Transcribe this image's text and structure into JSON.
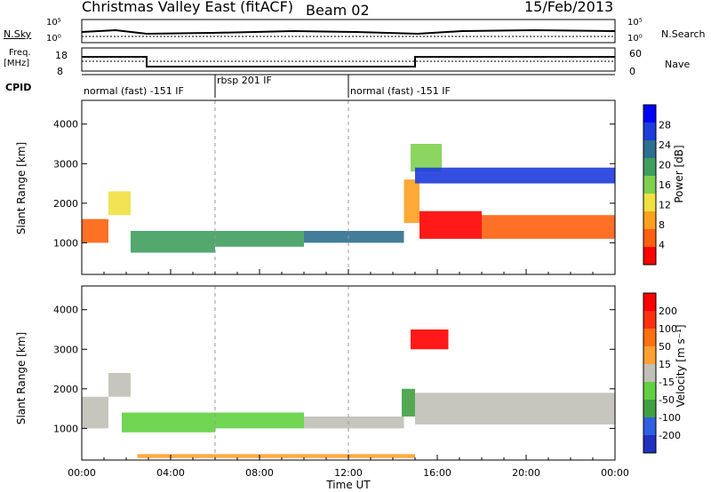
{
  "header": {
    "station": "Christmas Valley East (fitACF)",
    "beam": "Beam 02",
    "date": "15/Feb/2013"
  },
  "noise_panel": {
    "left_label": "N.Sky",
    "right_label": "N.Search",
    "left_ticks": [
      "10^5",
      "10^0"
    ],
    "right_ticks": [
      "10^5",
      "10^0"
    ]
  },
  "freq_panel": {
    "left_label_line1": "Freq.",
    "left_label_line2": "[MHz]",
    "left_ticks": [
      "18",
      "8"
    ],
    "right_label": "Nave",
    "right_ticks": [
      "60",
      "0"
    ]
  },
  "cpid": {
    "label": "CPID",
    "segments": [
      {
        "label": "normal (fast) -151 IF",
        "start_hour": 0,
        "end_hour": 6
      },
      {
        "label": "rbsp 201 IF",
        "start_hour": 6,
        "end_hour": 12
      },
      {
        "label": "normal (fast) -151 IF",
        "start_hour": 12,
        "end_hour": 24
      }
    ]
  },
  "colors": {
    "power_scale": [
      "#0000ff",
      "#1e3cdc",
      "#2f6f8f",
      "#3f9f5f",
      "#7fd04f",
      "#f0e040",
      "#ffa020",
      "#ff6010",
      "#ff0000"
    ],
    "velocity_scale": [
      "#2030c0",
      "#3060e0",
      "#40a040",
      "#60d040",
      "#c0c0b8",
      "#ffa030",
      "#ff7010",
      "#ff3010",
      "#ff0000"
    ]
  },
  "chart_data": [
    {
      "type": "heatmap",
      "panel": "power",
      "ylabel": "Slant Range [km]",
      "yticks": [
        1000,
        2000,
        3000,
        4000
      ],
      "ylim": [
        200,
        4600
      ],
      "xlim_hours": [
        0,
        24
      ],
      "colorbar": {
        "label": "Power [dB]",
        "ticks": [
          "28",
          "24",
          "20",
          "16",
          "12",
          "8",
          "4"
        ]
      },
      "bands": [
        {
          "start_hour": 0,
          "end_hour": 1.2,
          "range_low": 1000,
          "range_high": 1600,
          "level": 7
        },
        {
          "start_hour": 1.2,
          "end_hour": 2.2,
          "range_low": 1700,
          "range_high": 2300,
          "level": 5
        },
        {
          "start_hour": 2.2,
          "end_hour": 6,
          "range_low": 750,
          "range_high": 1300,
          "level": 3
        },
        {
          "start_hour": 6,
          "end_hour": 10,
          "range_low": 900,
          "range_high": 1300,
          "level": 3
        },
        {
          "start_hour": 10,
          "end_hour": 14.5,
          "range_low": 1000,
          "range_high": 1300,
          "level": 2
        },
        {
          "start_hour": 14.5,
          "end_hour": 15.2,
          "range_low": 1500,
          "range_high": 2600,
          "level": 6
        },
        {
          "start_hour": 15.2,
          "end_hour": 18,
          "range_low": 1100,
          "range_high": 1800,
          "level": 8
        },
        {
          "start_hour": 18,
          "end_hour": 24,
          "range_low": 1100,
          "range_high": 1700,
          "level": 7
        },
        {
          "start_hour": 14.8,
          "end_hour": 16.2,
          "range_low": 2800,
          "range_high": 3500,
          "level": 4
        },
        {
          "start_hour": 15,
          "end_hour": 24,
          "range_low": 2500,
          "range_high": 2900,
          "level": 1
        }
      ]
    },
    {
      "type": "heatmap",
      "panel": "velocity",
      "ylabel": "Slant Range [km]",
      "yticks": [
        1000,
        2000,
        3000,
        4000
      ],
      "ylim": [
        200,
        4600
      ],
      "xlim_hours": [
        0,
        24
      ],
      "xlabel": "Time UT",
      "xticks": [
        "00:00",
        "04:00",
        "08:00",
        "12:00",
        "16:00",
        "20:00",
        "00:00"
      ],
      "colorbar": {
        "label": "Velocity [m s^-1]",
        "ticks": [
          "200",
          "100",
          "50",
          "15",
          "-15",
          "-50",
          "-100",
          "-200"
        ]
      },
      "bands": [
        {
          "start_hour": 0,
          "end_hour": 1.2,
          "range_low": 1000,
          "range_high": 1800,
          "level": 4
        },
        {
          "start_hour": 1.2,
          "end_hour": 2.2,
          "range_low": 1800,
          "range_high": 2400,
          "level": 4
        },
        {
          "start_hour": 1.8,
          "end_hour": 6,
          "range_low": 900,
          "range_high": 1400,
          "level": 3
        },
        {
          "start_hour": 6,
          "end_hour": 10,
          "range_low": 1000,
          "range_high": 1400,
          "level": 3
        },
        {
          "start_hour": 10,
          "end_hour": 14.5,
          "range_low": 1000,
          "range_high": 1300,
          "level": 4
        },
        {
          "start_hour": 14.4,
          "end_hour": 15,
          "range_low": 1300,
          "range_high": 2000,
          "level": 2
        },
        {
          "start_hour": 15,
          "end_hour": 24,
          "range_low": 1100,
          "range_high": 1900,
          "level": 4
        },
        {
          "start_hour": 14.8,
          "end_hour": 16.5,
          "range_low": 3000,
          "range_high": 3500,
          "level": 8
        },
        {
          "start_hour": 2.5,
          "end_hour": 15,
          "range_low": 250,
          "range_high": 350,
          "level": 5
        }
      ]
    }
  ]
}
